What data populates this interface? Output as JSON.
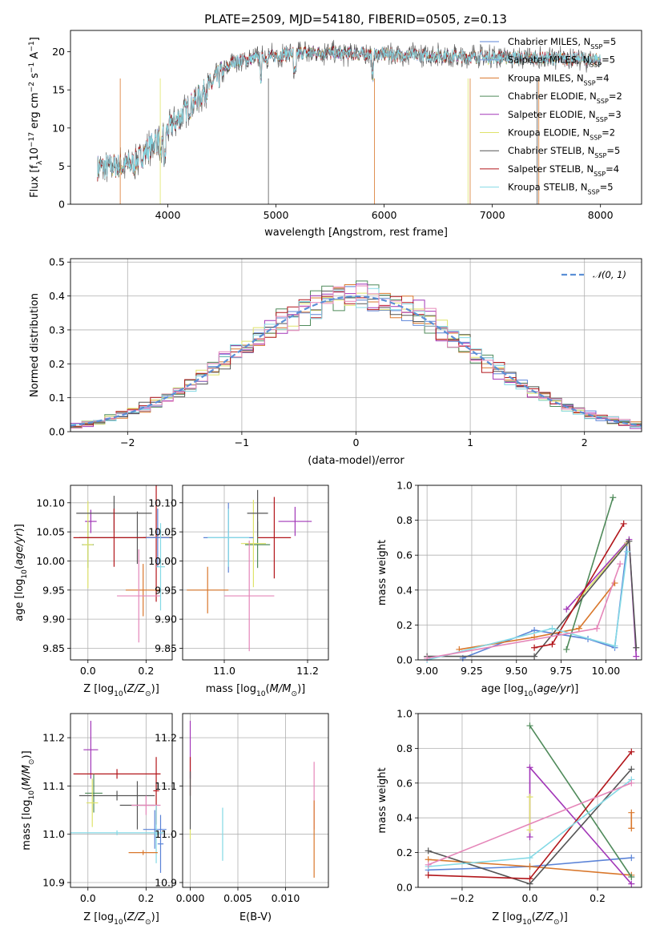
{
  "title": "PLATE=2509, MJD=54180, FIBERID=0505, z=0.13",
  "colors": {
    "chab_miles": "#5b83d7",
    "salp_miles": "#7e97da",
    "kroupa_miles": "#d9772b",
    "chab_elodie": "#4f8a5a",
    "salp_elodie": "#a237b8",
    "kroupa_elodie": "#dfe36a",
    "chab_stelib": "#555555",
    "salp_stelib": "#b2161b",
    "kroupa_stelib": "#84d9e5",
    "pink": "#e586b9",
    "normal_curve": "#5b8fd6"
  },
  "chart_data": [
    {
      "type": "line",
      "xlabel": "wavelength [Angstrom, rest frame]",
      "ylabel": "Flux [f",
      "ylabel_parts": [
        "Flux [f",
        "λ",
        "10",
        "−17",
        " erg cm",
        "−2",
        " s",
        "−1",
        " A",
        "−1",
        "]"
      ],
      "xlim": [
        3100,
        8380
      ],
      "ylim": [
        0,
        22.8
      ],
      "xticks": [
        "4000",
        "5000",
        "6000",
        "7000",
        "8000"
      ],
      "yticks": [
        "0",
        "5",
        "10",
        "15",
        "20"
      ],
      "spectrum_range": [
        3350,
        8000
      ],
      "legend": [
        {
          "name": "Chabrier MILES, N",
          "sub": "SSP",
          "n": "=5",
          "color": "chab_miles"
        },
        {
          "name": "Salpeter MILES, N",
          "sub": "SSP",
          "n": "=5",
          "color": "salp_miles"
        },
        {
          "name": "Kroupa MILES, N",
          "sub": "SSP",
          "n": "=4",
          "color": "kroupa_miles"
        },
        {
          "name": "Chabrier ELODIE, N",
          "sub": "SSP",
          "n": "=2",
          "color": "chab_elodie"
        },
        {
          "name": "Salpeter ELODIE, N",
          "sub": "SSP",
          "n": "=3",
          "color": "salp_elodie"
        },
        {
          "name": "Kroupa ELODIE, N",
          "sub": "SSP",
          "n": "=2",
          "color": "kroupa_elodie"
        },
        {
          "name": "Chabrier STELIB, N",
          "sub": "SSP",
          "n": "=5",
          "color": "chab_stelib"
        },
        {
          "name": "Salpeter STELIB, N",
          "sub": "SSP",
          "n": "=4",
          "color": "salp_stelib"
        },
        {
          "name": "Kroupa STELIB, N",
          "sub": "SSP",
          "n": "=5",
          "color": "kroupa_stelib"
        }
      ]
    },
    {
      "type": "line",
      "xlabel": "(data-model)/error",
      "ylabel": "Normed distribution",
      "xlim": [
        -2.5,
        2.5
      ],
      "ylim": [
        0,
        0.51
      ],
      "xticks": [
        "−2",
        "−1",
        "0",
        "1",
        "2"
      ],
      "yticks": [
        "0.0",
        "0.1",
        "0.2",
        "0.3",
        "0.4",
        "0.5"
      ],
      "legend_label": "𝒩(0, 1)",
      "bin_width": 0.1,
      "hist_colors": [
        "chab_miles",
        "kroupa_miles",
        "chab_elodie",
        "salp_elodie",
        "kroupa_elodie",
        "chab_stelib",
        "salp_stelib",
        "kroupa_stelib",
        "pink"
      ]
    },
    {
      "type": "scatter",
      "xlabel": "Z [log10(Z/Z☉)]",
      "ylabel": "age  [log10(age/yr)]",
      "xlim": [
        -0.06,
        0.29
      ],
      "ylim": [
        9.83,
        10.13
      ],
      "xticks": [
        "0.0",
        "0.2"
      ],
      "yticks": [
        "9.85",
        "9.90",
        "9.95",
        "10.00",
        "10.05",
        "10.10"
      ],
      "points": [
        {
          "x": 0.01,
          "y": 10.068,
          "xerr": 0.02,
          "yerr": 0.02,
          "color": "salp_elodie"
        },
        {
          "x": 0.0,
          "y": 10.028,
          "xerr": 0.02,
          "yerr": 0.04,
          "color": "chab_elodie"
        },
        {
          "x": 0.0,
          "y": 10.028,
          "xerr": 0.018,
          "yerr": 0.075,
          "color": "kroupa_elodie"
        },
        {
          "x": 0.09,
          "y": 10.082,
          "xerr": 0.13,
          "yerr": 0.03,
          "color": "chab_stelib"
        },
        {
          "x": 0.17,
          "y": 10.04,
          "xerr": 0.2,
          "yerr": 0.045,
          "color": "chab_stelib"
        },
        {
          "x": 0.09,
          "y": 10.04,
          "xerr": 0.14,
          "yerr": 0.05,
          "color": "salp_stelib"
        },
        {
          "x": 0.235,
          "y": 10.04,
          "xerr": 0.045,
          "yerr": 0.11,
          "color": "salp_stelib"
        },
        {
          "x": 0.24,
          "y": 10.04,
          "xerr": 0.04,
          "yerr": 0.05,
          "color": "chab_miles"
        },
        {
          "x": 0.19,
          "y": 9.95,
          "xerr": 0.06,
          "yerr": 0.045,
          "color": "kroupa_miles"
        },
        {
          "x": 0.175,
          "y": 9.94,
          "xerr": 0.075,
          "yerr": 0.08,
          "color": "pink"
        },
        {
          "x": 0.25,
          "y": 9.99,
          "xerr": 0.015,
          "yerr": 0.075,
          "color": "kroupa_stelib"
        }
      ]
    },
    {
      "type": "scatter",
      "xlabel": "mass [log10(M/M☉)]",
      "ylabel": "",
      "xlim": [
        10.9,
        11.25
      ],
      "ylim": [
        9.83,
        10.13
      ],
      "xticks": [
        "11.0",
        "11.2"
      ],
      "yticks": [
        "9.85",
        "9.90",
        "9.95",
        "10.00",
        "10.05",
        "10.10"
      ],
      "points": [
        {
          "x": 11.17,
          "y": 10.068,
          "xerr": 0.04,
          "yerr": 0.025,
          "color": "salp_elodie"
        },
        {
          "x": 11.08,
          "y": 10.028,
          "xerr": 0.03,
          "yerr": 0.04,
          "color": "chab_elodie"
        },
        {
          "x": 11.07,
          "y": 10.03,
          "xerr": 0.03,
          "yerr": 0.075,
          "color": "kroupa_elodie"
        },
        {
          "x": 11.08,
          "y": 10.082,
          "xerr": 0.025,
          "yerr": 0.04,
          "color": "chab_stelib"
        },
        {
          "x": 11.01,
          "y": 10.04,
          "xerr": 0.06,
          "yerr": 0.06,
          "color": "chab_miles"
        },
        {
          "x": 11.12,
          "y": 10.04,
          "xerr": 0.04,
          "yerr": 0.07,
          "color": "salp_stelib"
        },
        {
          "x": 11.01,
          "y": 10.04,
          "xerr": 0.05,
          "yerr": 0.05,
          "color": "kroupa_stelib"
        },
        {
          "x": 10.96,
          "y": 9.95,
          "xerr": 0.05,
          "yerr": 0.04,
          "color": "kroupa_miles"
        },
        {
          "x": 11.06,
          "y": 9.94,
          "xerr": 0.06,
          "yerr": 0.095,
          "color": "pink"
        }
      ]
    },
    {
      "type": "line",
      "xlabel": "age  [log10(age/yr)]",
      "ylabel": "mass weight",
      "xlim": [
        8.95,
        10.2
      ],
      "ylim": [
        0,
        1
      ],
      "xticks": [
        "9.00",
        "9.25",
        "9.50",
        "9.75",
        "10.00"
      ],
      "yticks": [
        "0.0",
        "0.2",
        "0.4",
        "0.6",
        "0.8",
        "1.0"
      ],
      "series": [
        {
          "color": "chab_miles",
          "x": [
            9.2,
            9.6,
            9.9,
            10.05,
            10.12
          ],
          "y": [
            0.01,
            0.17,
            0.12,
            0.07,
            0.67
          ]
        },
        {
          "color": "kroupa_miles",
          "x": [
            9.18,
            9.6,
            9.85,
            10.05
          ],
          "y": [
            0.06,
            0.13,
            0.18,
            0.44
          ]
        },
        {
          "color": "chab_elodie",
          "x": [
            9.78,
            10.04
          ],
          "y": [
            0.06,
            0.93
          ]
        },
        {
          "color": "salp_elodie",
          "x": [
            9.78,
            10.13,
            10.17
          ],
          "y": [
            0.29,
            0.69,
            0.02
          ]
        },
        {
          "color": "kroupa_elodie",
          "x": [
            9.85,
            10.12
          ],
          "y": [
            0.35,
            0.67
          ]
        },
        {
          "color": "chab_stelib",
          "x": [
            9.0,
            9.6,
            10.13,
            10.17
          ],
          "y": [
            0.02,
            0.02,
            0.68,
            0.07
          ]
        },
        {
          "color": "salp_stelib",
          "x": [
            9.6,
            9.7,
            10.1
          ],
          "y": [
            0.07,
            0.09,
            0.78
          ]
        },
        {
          "color": "kroupa_stelib",
          "x": [
            9.0,
            9.7,
            10.05,
            10.12
          ],
          "y": [
            0.0,
            0.18,
            0.08,
            0.62
          ]
        },
        {
          "color": "pink",
          "x": [
            9.0,
            9.95,
            10.08
          ],
          "y": [
            0.01,
            0.18,
            0.55
          ]
        }
      ]
    },
    {
      "type": "scatter",
      "xlabel": "Z [log10(Z/Z☉)]",
      "ylabel": "mass [log10(M/M☉)]",
      "xlim": [
        -0.06,
        0.29
      ],
      "ylim": [
        10.89,
        11.25
      ],
      "xticks": [
        "0.0",
        "0.2"
      ],
      "yticks": [
        "10.9",
        "11.0",
        "11.1",
        "11.2"
      ],
      "points": [
        {
          "x": 0.01,
          "y": 11.175,
          "xerr": 0.025,
          "yerr": 0.06,
          "color": "salp_elodie"
        },
        {
          "x": 0.1,
          "y": 11.125,
          "xerr": 0.15,
          "yerr": 0.01,
          "color": "salp_stelib"
        },
        {
          "x": 0.235,
          "y": 11.09,
          "xerr": 0.01,
          "yerr": 0.07,
          "color": "salp_stelib"
        },
        {
          "x": 0.02,
          "y": 11.085,
          "xerr": 0.03,
          "yerr": 0.04,
          "color": "chab_elodie"
        },
        {
          "x": 0.1,
          "y": 11.08,
          "xerr": 0.13,
          "yerr": 0.01,
          "color": "chab_stelib"
        },
        {
          "x": 0.17,
          "y": 11.06,
          "xerr": 0.06,
          "yerr": 0.05,
          "color": "chab_stelib"
        },
        {
          "x": 0.015,
          "y": 11.065,
          "xerr": 0.02,
          "yerr": 0.05,
          "color": "kroupa_elodie"
        },
        {
          "x": 0.2,
          "y": 11.06,
          "xerr": 0.05,
          "yerr": 0.02,
          "color": "pink"
        },
        {
          "x": 0.23,
          "y": 11.01,
          "xerr": 0.04,
          "yerr": 0.04,
          "color": "chab_miles"
        },
        {
          "x": 0.25,
          "y": 10.98,
          "xerr": 0.01,
          "yerr": 0.06,
          "color": "chab_miles"
        },
        {
          "x": 0.1,
          "y": 11.003,
          "xerr": 0.16,
          "yerr": 0.005,
          "color": "kroupa_stelib"
        },
        {
          "x": 0.235,
          "y": 11.0,
          "xerr": 0.005,
          "yerr": 0.06,
          "color": "kroupa_stelib"
        },
        {
          "x": 0.19,
          "y": 10.962,
          "xerr": 0.05,
          "yerr": 0.005,
          "color": "kroupa_miles"
        }
      ]
    },
    {
      "type": "scatter",
      "xlabel": "E(B-V)",
      "ylabel": "",
      "xlim": [
        -0.0008,
        0.0145
      ],
      "ylim": [
        10.89,
        11.25
      ],
      "xticks": [
        "0.000",
        "0.005",
        "0.010"
      ],
      "yticks": [
        "10.9",
        "11.0",
        "11.1",
        "11.2"
      ],
      "points": [
        {
          "x": 0.0,
          "y": 11.175,
          "xerr": 0.0,
          "yerr": 0.06,
          "color": "salp_elodie"
        },
        {
          "x": 0.0,
          "y": 11.12,
          "xerr": 0.0,
          "yerr": 0.04,
          "color": "salp_stelib"
        },
        {
          "x": 0.0,
          "y": 11.07,
          "xerr": 0.0,
          "yerr": 0.06,
          "color": "chab_stelib"
        },
        {
          "x": 0.0,
          "y": 11.0,
          "xerr": 0.0,
          "yerr": 0.01,
          "color": "kroupa_elodie"
        },
        {
          "x": 0.0034,
          "y": 11.0,
          "xerr": 0.0,
          "yerr": 0.055,
          "color": "kroupa_stelib"
        },
        {
          "x": 0.013,
          "y": 11.08,
          "xerr": 0.0,
          "yerr": 0.07,
          "color": "pink"
        },
        {
          "x": 0.013,
          "y": 10.99,
          "xerr": 0.0,
          "yerr": 0.08,
          "color": "kroupa_miles"
        }
      ]
    },
    {
      "type": "line",
      "xlabel": "Z [log10(Z/Z☉)]",
      "ylabel": "mass weight",
      "xlim": [
        -0.33,
        0.33
      ],
      "ylim": [
        0,
        1
      ],
      "xticks": [
        "−0.2",
        "0.0",
        "0.2"
      ],
      "yticks": [
        "0.0",
        "0.2",
        "0.4",
        "0.6",
        "0.8",
        "1.0"
      ],
      "series": [
        {
          "color": "chab_miles",
          "x": [
            -0.3,
            0.0,
            0.3
          ],
          "y": [
            0.1,
            0.12,
            0.17
          ]
        },
        {
          "color": "kroupa_miles",
          "x": [
            -0.3,
            0.0,
            0.3
          ],
          "y": [
            0.16,
            0.12,
            0.07
          ]
        },
        {
          "color": "chab_elodie",
          "x": [
            0.0,
            0.3
          ],
          "y": [
            0.93,
            0.06
          ]
        },
        {
          "color": "salp_elodie",
          "x": [
            0.0,
            0.0,
            0.3
          ],
          "y": [
            0.29,
            0.69,
            0.02
          ]
        },
        {
          "color": "kroupa_elodie",
          "x": [
            0.0,
            0.0
          ],
          "y": [
            0.33,
            0.52
          ]
        },
        {
          "color": "chab_stelib",
          "x": [
            -0.3,
            0.0,
            0.3
          ],
          "y": [
            0.21,
            0.02,
            0.68
          ]
        },
        {
          "color": "salp_stelib",
          "x": [
            -0.3,
            0.0,
            0.3
          ],
          "y": [
            0.07,
            0.05,
            0.78
          ]
        },
        {
          "color": "kroupa_stelib",
          "x": [
            -0.3,
            0.0,
            0.3
          ],
          "y": [
            0.12,
            0.17,
            0.62
          ]
        },
        {
          "color": "pink",
          "x": [
            -0.3,
            0.3
          ],
          "y": [
            0.13,
            0.6
          ]
        },
        {
          "color": "kroupa_miles",
          "x": [
            0.3,
            0.3
          ],
          "y": [
            0.34,
            0.43
          ]
        }
      ]
    }
  ]
}
